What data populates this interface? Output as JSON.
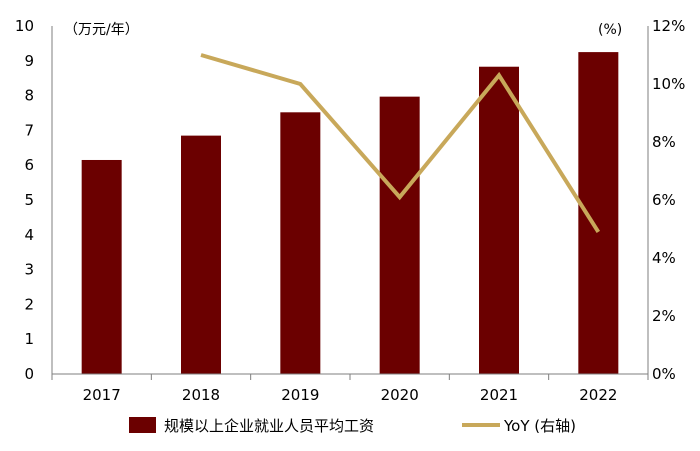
{
  "chart_data": {
    "type": "bar",
    "categories": [
      "2017",
      "2018",
      "2019",
      "2020",
      "2021",
      "2022"
    ],
    "series": [
      {
        "name": "规模以上企业就业人员平均工资",
        "type": "bar",
        "axis": "left",
        "color": "#6b0000",
        "values": [
          6.15,
          6.85,
          7.52,
          7.97,
          8.83,
          9.25
        ]
      },
      {
        "name": "YoY (右轴)",
        "type": "line",
        "axis": "right",
        "color": "#c8a85a",
        "values": [
          null,
          11.0,
          10.0,
          6.1,
          10.3,
          4.9
        ]
      }
    ],
    "left_axis": {
      "unit_label": "（万元/年）",
      "ylim": [
        0,
        10
      ],
      "ticks": [
        "0",
        "1",
        "2",
        "3",
        "4",
        "5",
        "6",
        "7",
        "8",
        "9",
        "10"
      ]
    },
    "right_axis": {
      "unit_label": "(%)",
      "ylim": [
        0,
        12
      ],
      "ticks": [
        "0%",
        "2%",
        "4%",
        "6%",
        "8%",
        "10%",
        "12%"
      ]
    },
    "grid": false,
    "legend_position": "bottom"
  }
}
